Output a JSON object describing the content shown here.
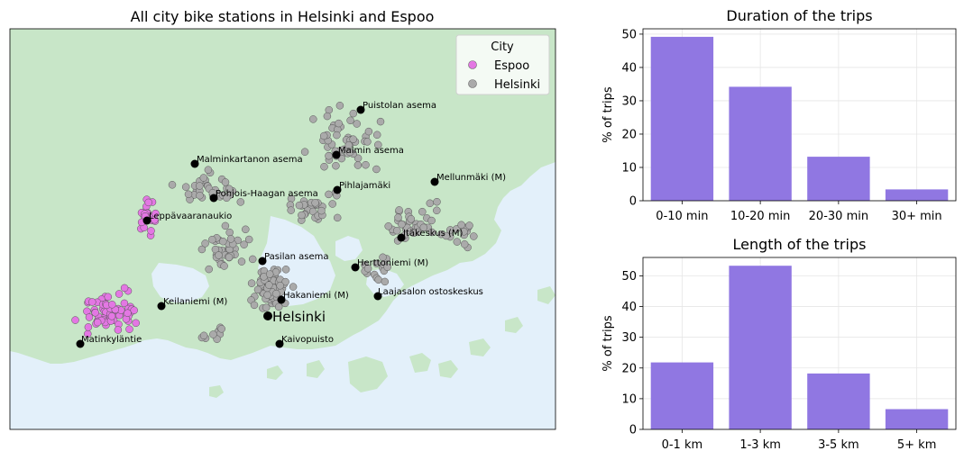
{
  "map": {
    "title": "All city bike stations in Helsinki and Espoo",
    "legend": {
      "title": "City",
      "placement": "top-right",
      "entries": [
        {
          "label": "Espoo",
          "color": "#e377e3"
        },
        {
          "label": "Helsinki",
          "color": "#aaaaaa"
        }
      ]
    },
    "colors": {
      "land": "#c8e6c8",
      "water": "#e3f0fa",
      "marker": "#000000"
    },
    "city_label": "Helsinki",
    "stations": [
      "Puistolan asema",
      "Malminkartanon asema",
      "Malmin asema",
      "Mellunmäki (M)",
      "Pihlajamäki",
      "Pohjois-Haagan asema",
      "Leppävaaranaukio",
      "Itäkeskus (M)",
      "Pasilan asema",
      "Herttoniemi (M)",
      "Laajasalon ostoskeskus",
      "Hakaniemi (M)",
      "Keilaniemi (M)",
      "Matinkyläntie",
      "Kaivopuisto"
    ]
  },
  "chart_data": [
    {
      "type": "bar",
      "title": "Duration of the trips",
      "xlabel": "",
      "ylabel": "% of trips",
      "categories": [
        "0-10 min",
        "10-20 min",
        "20-30 min",
        "30+ min"
      ],
      "values": [
        49.2,
        34.2,
        13.2,
        3.4
      ],
      "ylim": [
        0,
        51.6
      ],
      "yticks": [
        0,
        10,
        20,
        30,
        40,
        50
      ],
      "grid": true,
      "color": "#9077e2"
    },
    {
      "type": "bar",
      "title": "Length of the trips",
      "xlabel": "",
      "ylabel": "% of trips",
      "categories": [
        "0-1 km",
        "1-3 km",
        "3-5 km",
        "5+ km"
      ],
      "values": [
        21.8,
        53.3,
        18.2,
        6.6
      ],
      "ylim": [
        0,
        56.0
      ],
      "yticks": [
        0,
        10,
        20,
        30,
        40,
        50
      ],
      "grid": true,
      "color": "#9077e2"
    }
  ]
}
